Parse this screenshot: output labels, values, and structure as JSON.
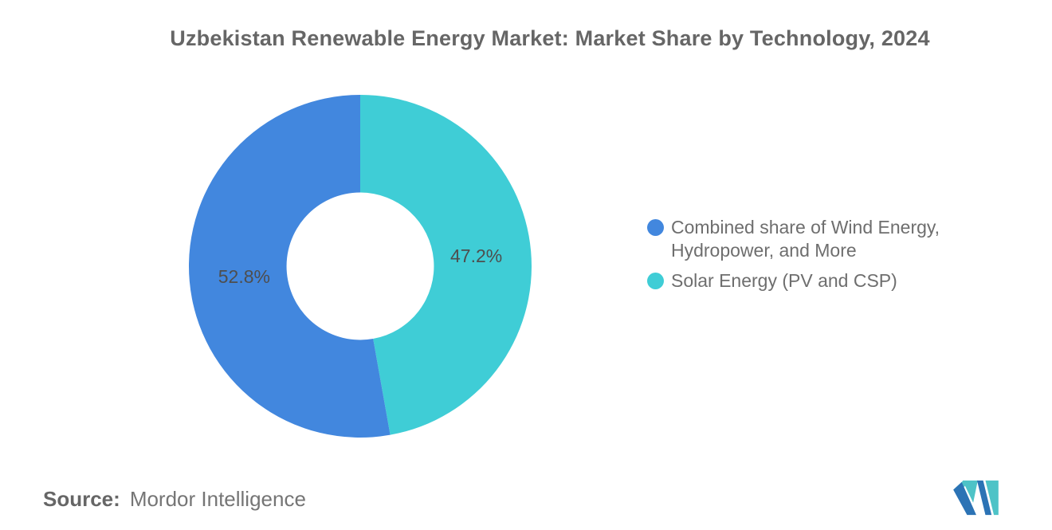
{
  "title": "Uzbekistan Renewable Energy Market: Market Share by Technology, 2024",
  "chart_data": {
    "type": "pie",
    "subtype": "donut",
    "title": "Uzbekistan Renewable Energy Market: Market Share by Technology, 2024",
    "unit": "%",
    "start_angle_deg": 0,
    "direction": "clockwise",
    "inner_radius_ratio": 0.43,
    "legend_position": "right",
    "slices": [
      {
        "name": "Solar Energy (PV and CSP)",
        "value": 47.2,
        "label": "47.2%",
        "color": "#3FCDD6"
      },
      {
        "name": "Combined share of Wind Energy, Hydropower, and More",
        "value": 52.8,
        "label": "52.8%",
        "color": "#4287DE"
      }
    ]
  },
  "legend": {
    "items": [
      {
        "label": "Combined share of Wind Energy, Hydropower, and More",
        "color": "#4287DE"
      },
      {
        "label": "Solar Energy (PV and CSP)",
        "color": "#3FCDD6"
      }
    ]
  },
  "source": {
    "label": "Source:",
    "value": "Mordor Intelligence"
  },
  "logo": {
    "name": "mordor-intelligence-logo",
    "colors": {
      "blue": "#2C73B5",
      "teal": "#4EC3C7"
    }
  },
  "colors": {
    "background": "#FFFFFF",
    "title_text": "#666666",
    "legend_text": "#6E6E6E",
    "slice_label_text": "#4E4E4E",
    "source_text": "#6B6B6B"
  }
}
